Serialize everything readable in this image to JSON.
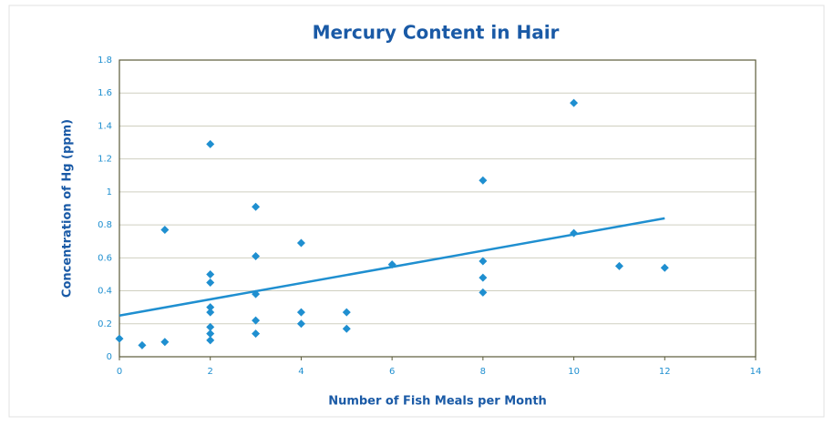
{
  "chart_data": {
    "type": "scatter",
    "title": "Mercury Content in Hair",
    "xlabel": "Number of Fish Meals per Month",
    "ylabel": "Concentration of Hg (ppm)",
    "color": "#1f8fd0",
    "x": [
      0,
      0.5,
      1,
      1,
      2,
      2,
      2,
      2,
      2,
      2,
      2,
      2,
      3,
      3,
      3,
      3,
      3,
      4,
      4,
      4,
      5,
      5,
      6,
      8,
      8,
      8,
      8,
      10,
      10,
      11,
      12
    ],
    "values": [
      0.11,
      0.07,
      0.09,
      0.77,
      1.29,
      0.5,
      0.45,
      0.3,
      0.27,
      0.18,
      0.14,
      0.1,
      0.91,
      0.61,
      0.38,
      0.22,
      0.14,
      0.69,
      0.27,
      0.2,
      0.27,
      0.17,
      0.56,
      1.07,
      0.58,
      0.48,
      0.39,
      1.54,
      0.75,
      0.55,
      0.54
    ],
    "trendline": {
      "x": [
        0,
        12
      ],
      "values": [
        0.25,
        0.84
      ]
    },
    "xlim": [
      0,
      14
    ],
    "xticks": [
      0,
      2,
      4,
      6,
      8,
      10,
      12,
      14
    ],
    "ylim": [
      0,
      1.8
    ],
    "yticks": [
      0,
      0.2,
      0.4,
      0.6,
      0.8,
      1,
      1.2,
      1.4,
      1.6,
      1.8
    ],
    "grid": true
  }
}
